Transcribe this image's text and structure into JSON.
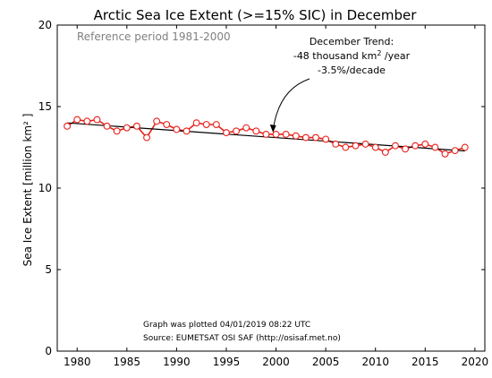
{
  "chart_data": {
    "type": "line",
    "title": "Arctic Sea Ice Extent (>=15% SIC) in December",
    "xlabel": "",
    "ylabel": "Sea Ice Extent [million km² ]",
    "xlim": [
      1978,
      2021
    ],
    "ylim": [
      0,
      20
    ],
    "xticks": [
      1980,
      1985,
      1990,
      1995,
      2000,
      2005,
      2010,
      2015,
      2020
    ],
    "yticks": [
      0,
      5,
      10,
      15,
      20
    ],
    "grid": false,
    "reference_text": "Reference period 1981-2000",
    "trend_annotation": {
      "line1": "December Trend:",
      "line2_prefix": "-48 thousand km",
      "line2_sup": "2",
      "line2_suffix": " /year",
      "line3": "-3.5%/decade",
      "arrow_to": [
        1999.7,
        13.3
      ]
    },
    "credits": {
      "line1": "Graph was plotted 04/01/2019 08:22 UTC",
      "line2": "Source: EUMETSAT OSI SAF (http://osisaf.met.no)"
    },
    "series": [
      {
        "color": "#e8211b",
        "x": [
          1979,
          1980,
          1981,
          1982,
          1983,
          1984,
          1985,
          1986,
          1987,
          1988,
          1989,
          1990,
          1991,
          1992,
          1993,
          1994,
          1995,
          1996,
          1997,
          1998,
          1999,
          2000,
          2001,
          2002,
          2003,
          2004,
          2005,
          2006,
          2007,
          2008,
          2009,
          2010,
          2011,
          2012,
          2013,
          2014,
          2015,
          2016,
          2017,
          2018,
          2019
        ],
        "values": [
          13.8,
          14.2,
          14.1,
          14.2,
          13.8,
          13.5,
          13.7,
          13.8,
          13.1,
          14.1,
          13.9,
          13.6,
          13.5,
          14.0,
          13.9,
          13.9,
          13.4,
          13.5,
          13.7,
          13.5,
          13.3,
          13.3,
          13.3,
          13.2,
          13.1,
          13.1,
          13.0,
          12.7,
          12.5,
          12.6,
          12.7,
          12.5,
          12.2,
          12.6,
          12.4,
          12.6,
          12.7,
          12.5,
          12.1,
          12.3,
          12.5
        ]
      }
    ],
    "trend_line": {
      "color": "#000000",
      "x": [
        1979,
        2019
      ],
      "y": [
        14.0,
        12.28
      ]
    }
  }
}
